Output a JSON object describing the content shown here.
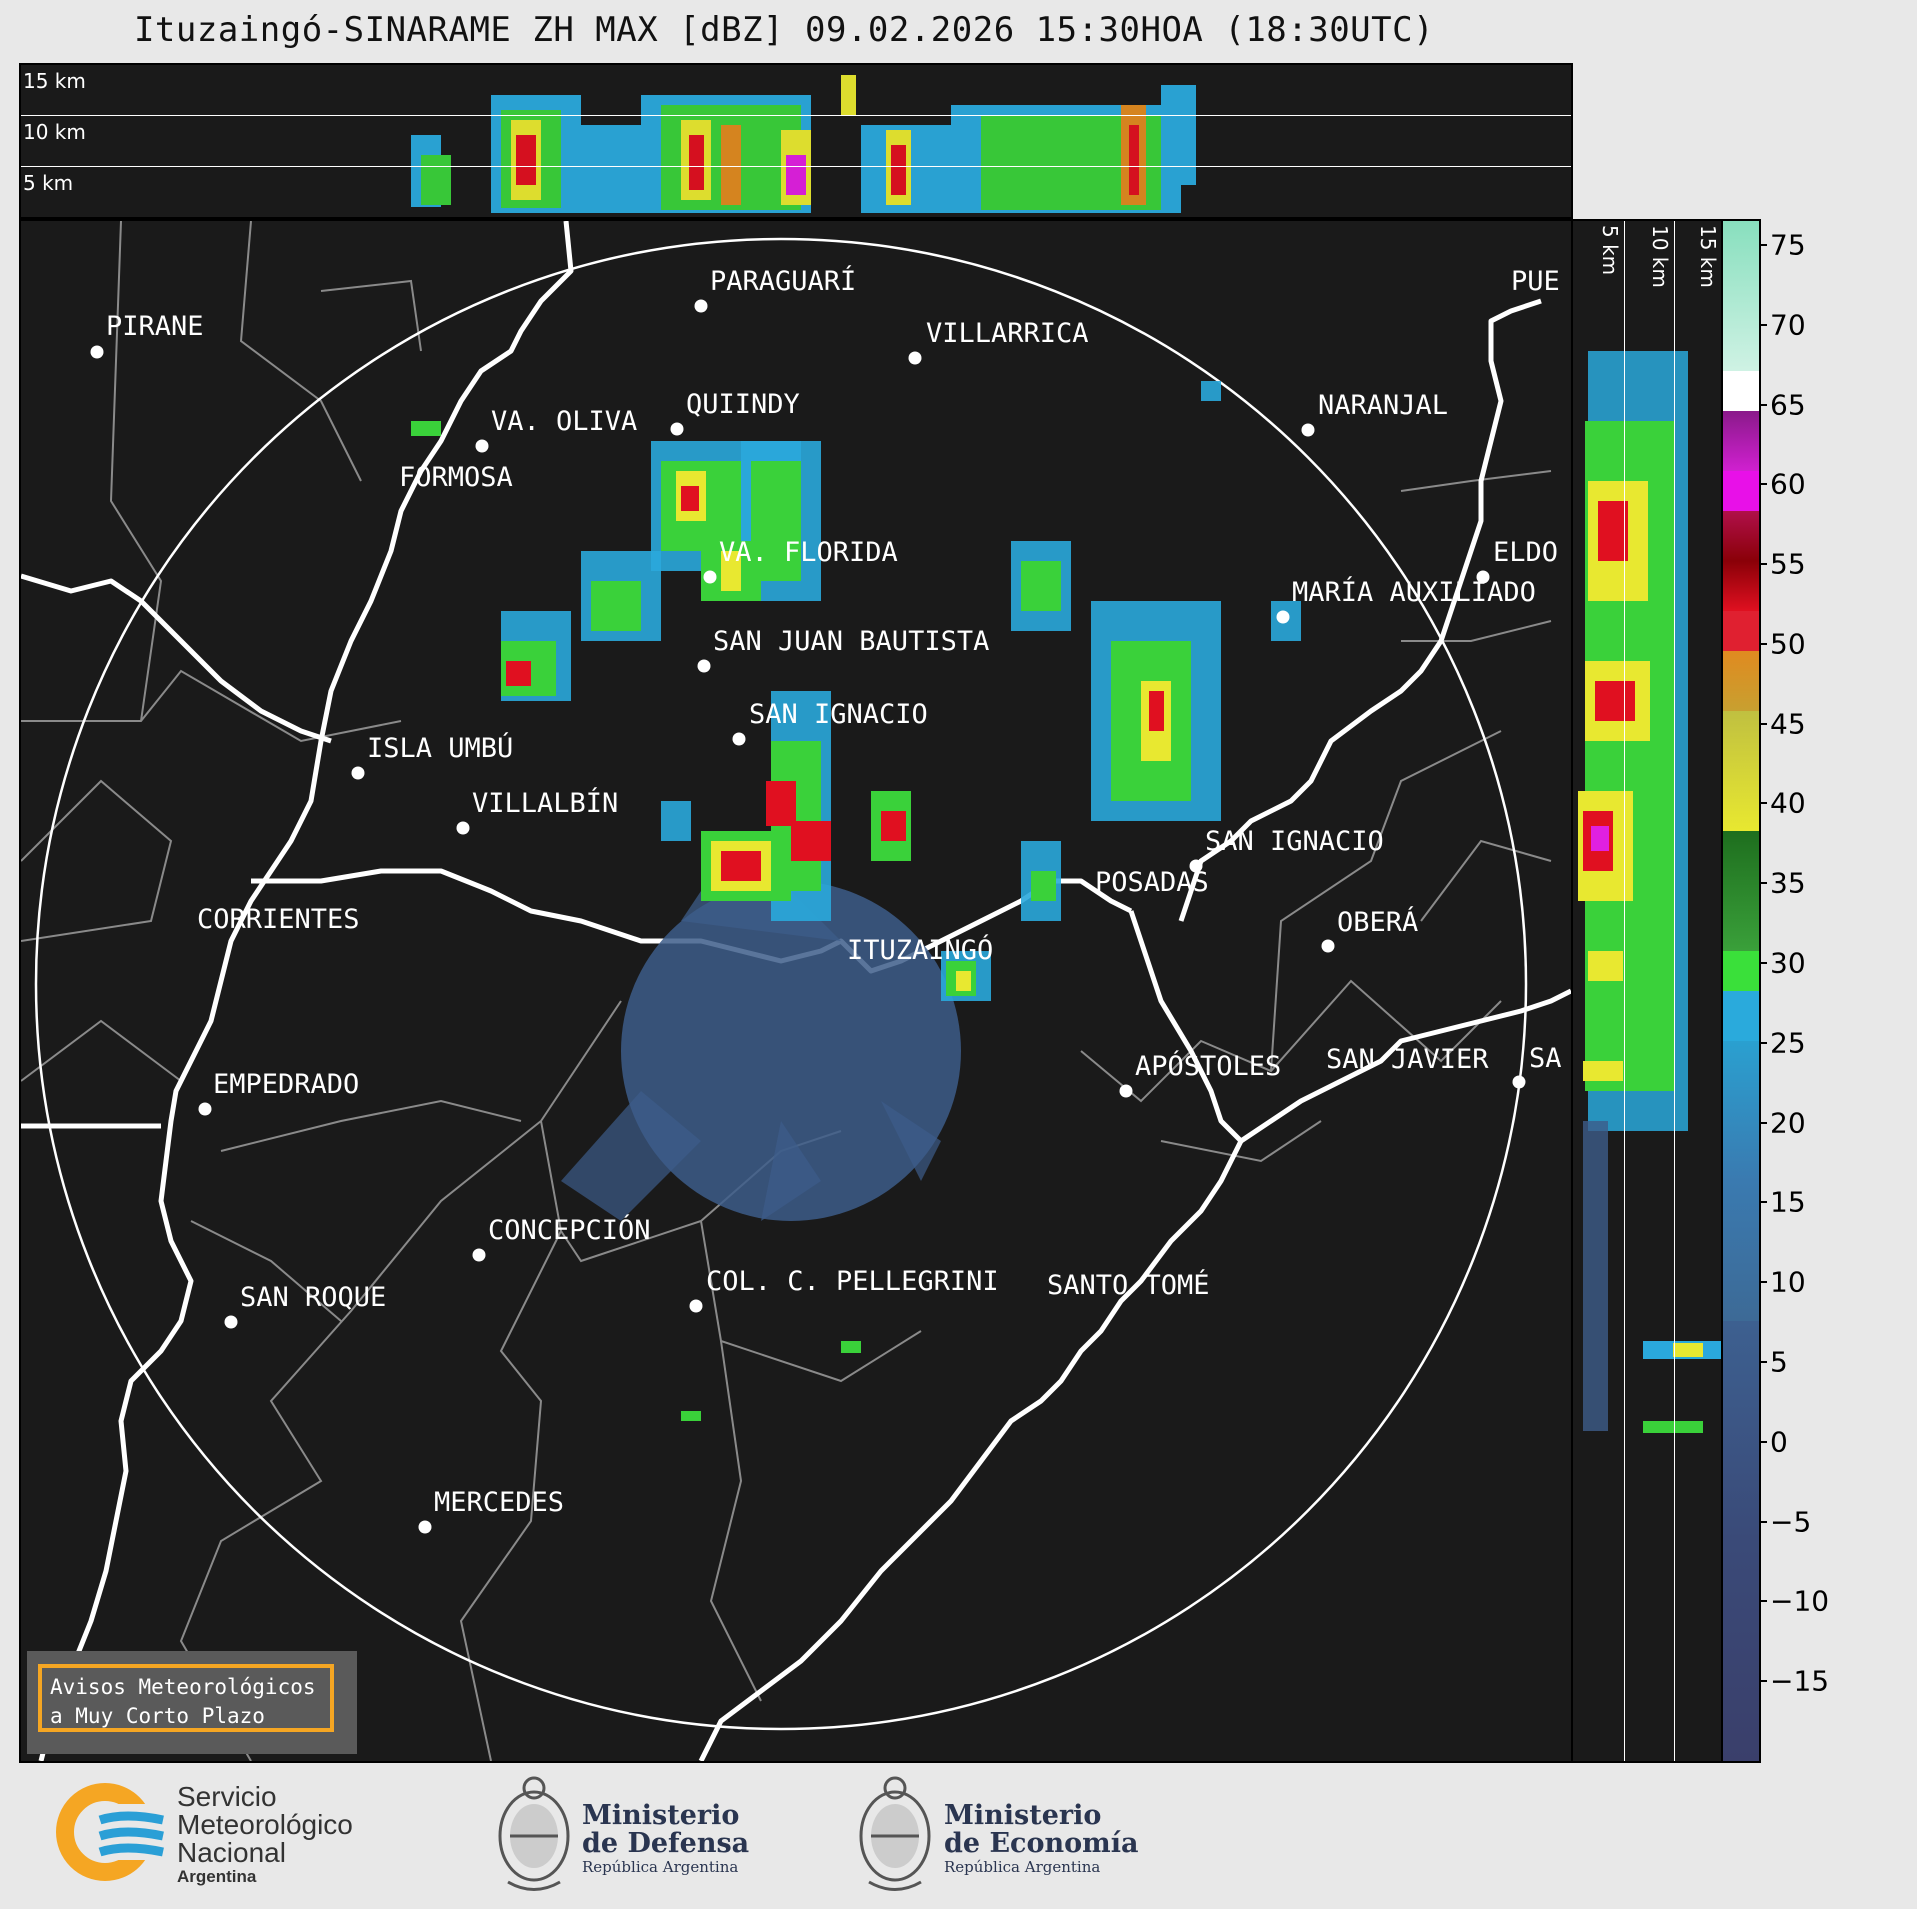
{
  "title": "Ituzaingó-SINARAME ZH MAX [dBZ] 09.02.2026 15:30HOA (18:30UTC)",
  "top_panel": {
    "height_labels": [
      "15 km",
      "10 km",
      "5 km"
    ]
  },
  "side_panel": {
    "height_labels": [
      "5 km",
      "10 km",
      "15 km"
    ]
  },
  "cities": [
    {
      "name": "PARAGUARÍ"
    },
    {
      "name": "VILLARRICA"
    },
    {
      "name": "PIRANE"
    },
    {
      "name": "QUIINDY"
    },
    {
      "name": "VA. OLIVA"
    },
    {
      "name": "FORMOSA"
    },
    {
      "name": "NARANJAL"
    },
    {
      "name": "PUE"
    },
    {
      "name": "VA. FLORIDA"
    },
    {
      "name": "ELDO"
    },
    {
      "name": "MARÍA AUXILIADO"
    },
    {
      "name": "SAN JUAN BAUTISTA"
    },
    {
      "name": "SAN IGNACIO"
    },
    {
      "name": "ISLA UMBÚ"
    },
    {
      "name": "VILLALBÍN"
    },
    {
      "name": "SAN IGNACIO"
    },
    {
      "name": "POSADAS"
    },
    {
      "name": "CORRIENTES"
    },
    {
      "name": "ITUZAINGÓ"
    },
    {
      "name": "OBERÁ"
    },
    {
      "name": "EMPEDRADO"
    },
    {
      "name": "APÓSTOLES"
    },
    {
      "name": "SAN JAVIER"
    },
    {
      "name": "SA"
    },
    {
      "name": "CONCEPCIÓN"
    },
    {
      "name": "COL. C. PELLEGRINI"
    },
    {
      "name": "SANTO TOMÉ"
    },
    {
      "name": "SAN ROQUE"
    },
    {
      "name": "MERCEDES"
    }
  ],
  "colorbar": {
    "ticks": [
      "75",
      "70",
      "65",
      "60",
      "55",
      "50",
      "45",
      "40",
      "35",
      "30",
      "25",
      "20",
      "15",
      "10",
      "5",
      "0",
      "−5",
      "−10",
      "−15"
    ],
    "range_dbz": [
      -20,
      76.5
    ],
    "colors": {
      "very_low": "#3a3f6b",
      "low": "#3d5d8a",
      "mid_blue": "#3a88c0",
      "light_blue": "#2aa9dc",
      "green": "#3ad13a",
      "dark_green": "#2a7a2a",
      "yellow": "#e8e830",
      "olive": "#c0b030",
      "orange": "#e08a20",
      "red": "#e01020",
      "dark_red": "#a00010",
      "magenta": "#e020e0",
      "purple": "#a020a0",
      "white": "#ffffff",
      "mint": "#90e0c0"
    }
  },
  "warning": {
    "line1": "Avisos Meteorológicos",
    "line2": "a Muy Corto Plazo"
  },
  "logos": {
    "smn": {
      "line1": "Servicio",
      "line2": "Meteorológico",
      "line3": "Nacional",
      "line4": "Argentina"
    },
    "defensa": {
      "line1": "Ministerio",
      "line2": "de Defensa",
      "line3": "República Argentina"
    },
    "economia": {
      "line1": "Ministerio",
      "line2": "de Economía",
      "line3": "República Argentina"
    }
  }
}
